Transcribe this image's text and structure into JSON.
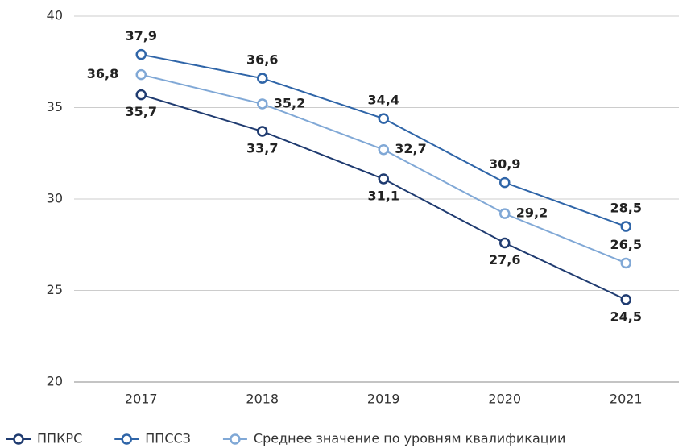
{
  "chart_data": {
    "type": "line",
    "categories": [
      "2017",
      "2018",
      "2019",
      "2020",
      "2021"
    ],
    "series": [
      {
        "name": "ППКРС",
        "color": "#1f3b70",
        "values": [
          35.7,
          33.7,
          31.1,
          27.6,
          24.5
        ],
        "value_labels": [
          "35,7",
          "33,7",
          "31,1",
          "27,6",
          "24,5"
        ]
      },
      {
        "name": "ППССЗ",
        "color": "#2f65a8",
        "values": [
          37.9,
          36.6,
          34.4,
          30.9,
          28.5
        ],
        "value_labels": [
          "37,9",
          "36,6",
          "34,4",
          "30,9",
          "28,5"
        ]
      },
      {
        "name": "Среднее значение по уровням квалификации",
        "color": "#80a8d6",
        "values": [
          36.8,
          35.2,
          32.7,
          29.2,
          26.5
        ],
        "value_labels": [
          "36,8",
          "35,2",
          "32,7",
          "29,2",
          "26,5"
        ]
      }
    ],
    "ylim": [
      20,
      40
    ],
    "yticks": [
      20,
      25,
      30,
      35,
      40
    ],
    "grid": true,
    "legend": "bottom"
  }
}
